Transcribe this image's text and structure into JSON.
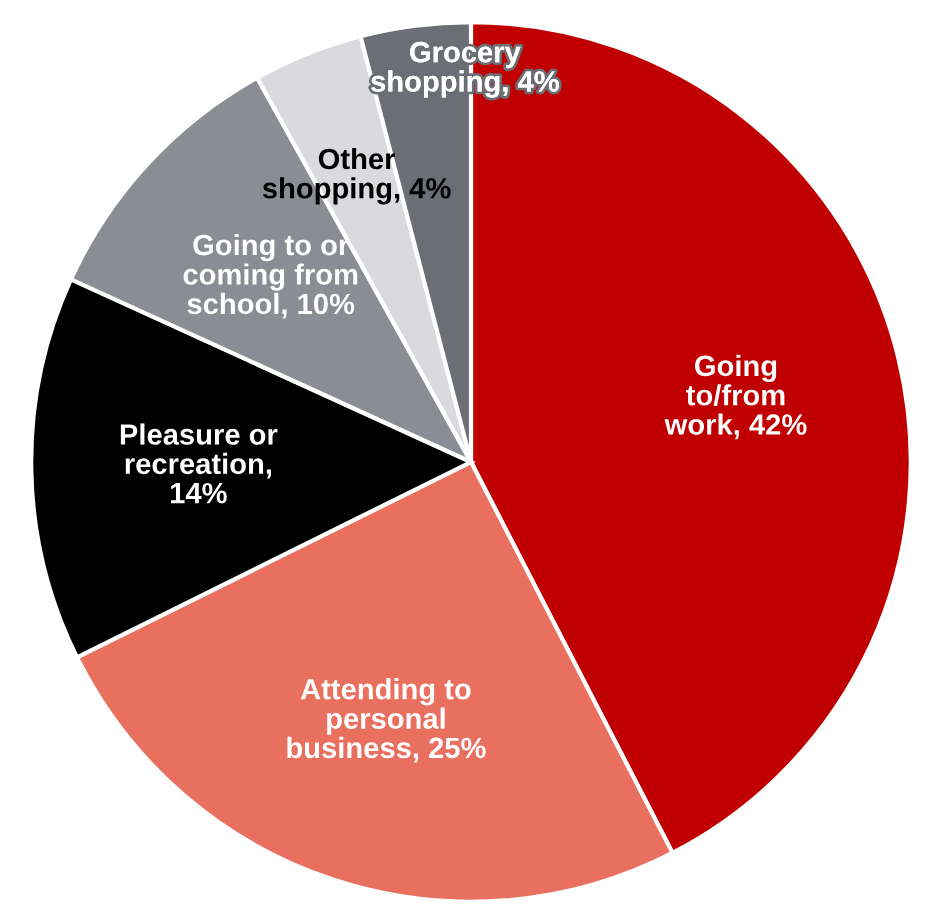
{
  "chart_data": {
    "type": "pie",
    "categories": [
      "Going\nto/from\nwork, 42%",
      "Attending to\npersonal\nbusiness, 25%",
      "Pleasure or\nrecreation,\n14%",
      "Going to or\ncoming from\nschool, 10%",
      "Other\nshopping, 4%",
      "Grocery\nshopping, 4%"
    ],
    "values": [
      42,
      25,
      14,
      10,
      4,
      4
    ],
    "colors": [
      "#c00000",
      "#e9705e",
      "#000000",
      "#8a8d93",
      "#d9d9de",
      "#6b6e74"
    ]
  }
}
